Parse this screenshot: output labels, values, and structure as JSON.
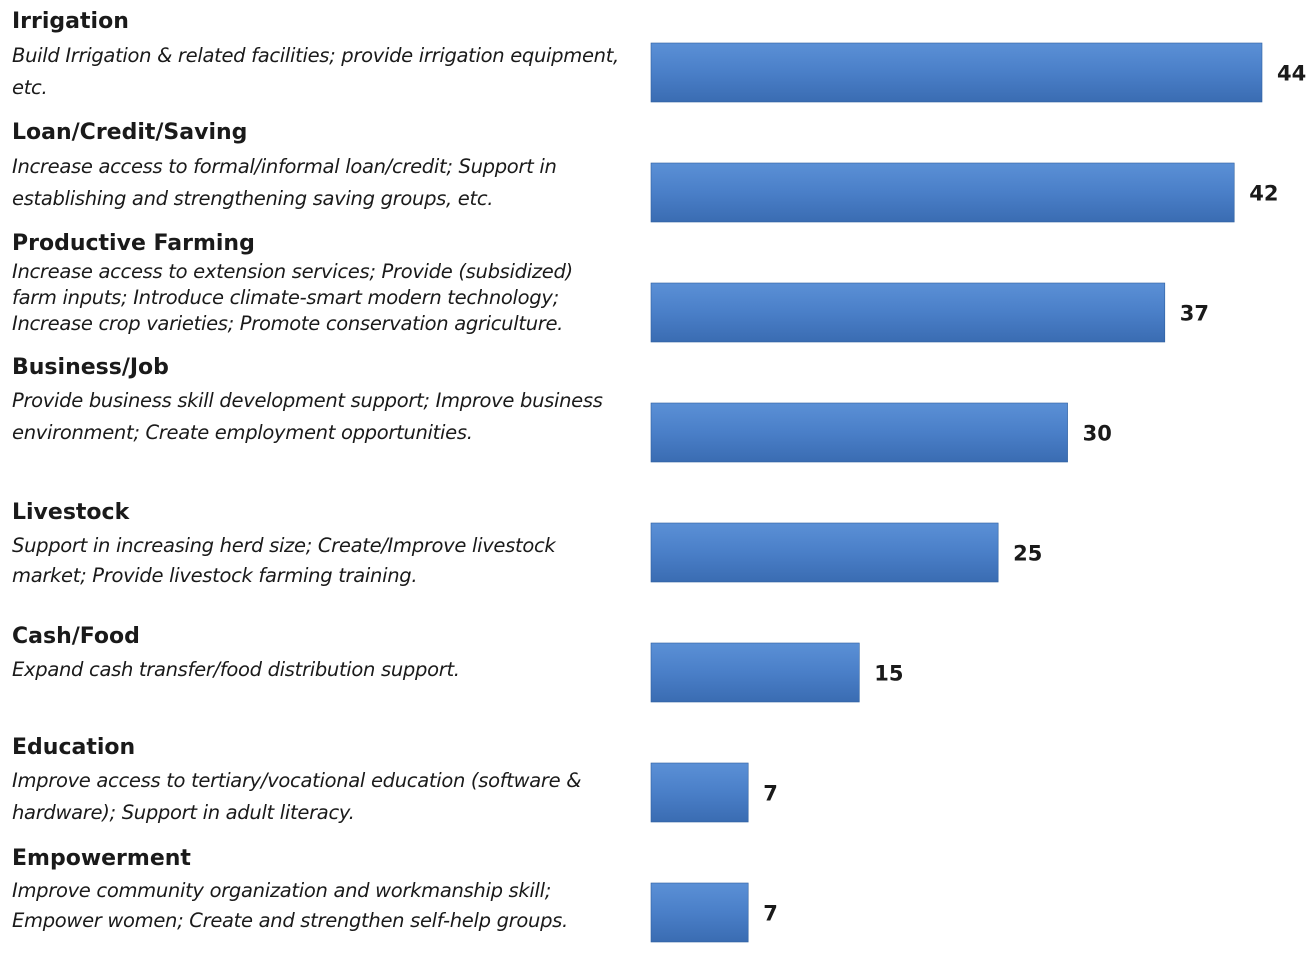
{
  "chart_data": {
    "type": "bar",
    "orientation": "horizontal",
    "categories": [
      "Irrigation",
      "Loan/Credit/Saving",
      "Productive Farming",
      "Business/Job",
      "Livestock",
      "Cash/Food",
      "Education",
      "Empowerment"
    ],
    "descriptions": [
      "Build Irrigation & related facilities; provide irrigation equipment, etc.",
      "Increase access to formal/informal loan/credit; Support in establishing and strengthening saving groups, etc.",
      "Increase access to extension services; Provide (subsidized) farm inputs; Introduce climate-smart modern technology; Increase crop varieties; Promote conservation agriculture.",
      "Provide business skill development support; Improve business environment; Create employment opportunities.",
      "Support in increasing herd size; Create/Improve livestock market; Provide livestock farming training.",
      "Expand cash transfer/food distribution support.",
      "Improve access to tertiary/vocational education (software & hardware); Support in adult literacy.",
      "Improve community organization and workmanship skill; Empower women; Create and strengthen self-help groups."
    ],
    "values": [
      44,
      42,
      37,
      30,
      25,
      15,
      7,
      7
    ],
    "data_labels": [
      "44",
      "42",
      "37",
      "30",
      "25",
      "15",
      "7",
      "7"
    ],
    "bar_color": "#4a7fc8",
    "bar_color_dark": "#2e5f9f",
    "xlim": [
      0,
      44
    ],
    "grid": false,
    "legend": "none"
  }
}
